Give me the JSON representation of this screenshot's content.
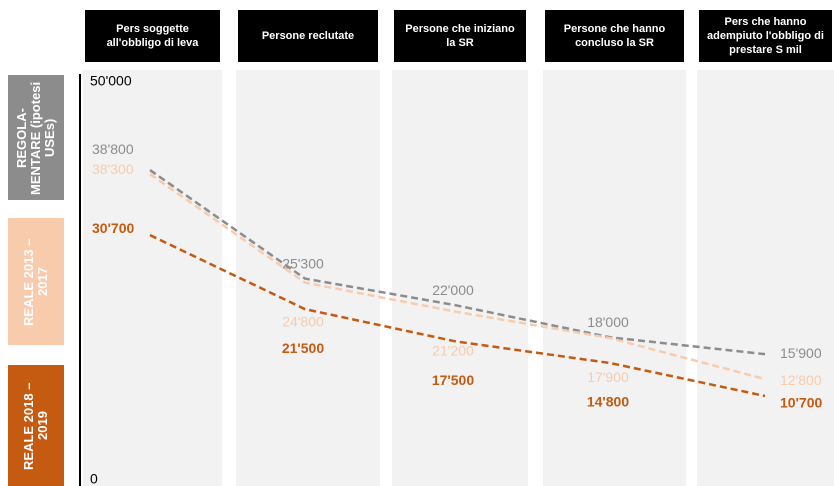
{
  "chart_data": {
    "type": "line",
    "categories": [
      "Pers soggette all'obbligo di leva",
      "Persone reclutate",
      "Persone che iniziano la SR",
      "Persone che hanno concluso la SR",
      "Pers che hanno adempiuto l'obbligo di prestare S mil"
    ],
    "series": [
      {
        "name": "REGOLA-MENTARE (ipotesi USEs)",
        "color": "#8c8c8c",
        "values": [
          38800,
          25300,
          22000,
          18000,
          15900
        ],
        "value_labels": [
          "38'800",
          "25'300",
          "22'000",
          "18'000",
          "15'900"
        ]
      },
      {
        "name": "REALE 2013 – 2017",
        "color": "#f8cbad",
        "values": [
          38300,
          24800,
          21200,
          17900,
          12800
        ],
        "value_labels": [
          "38'300",
          "24'800",
          "21'200",
          "17'900",
          "12'800"
        ]
      },
      {
        "name": "REALE 2018 – 2019",
        "color": "#c55a11",
        "values": [
          30700,
          21500,
          17500,
          14800,
          10700
        ],
        "value_labels": [
          "30'700",
          "21'500",
          "17'500",
          "14'800",
          "10'700"
        ]
      }
    ],
    "ylim": [
      0,
      50000
    ],
    "yticks": [
      0,
      {
        "value": 50000,
        "label": "50'000"
      }
    ]
  }
}
